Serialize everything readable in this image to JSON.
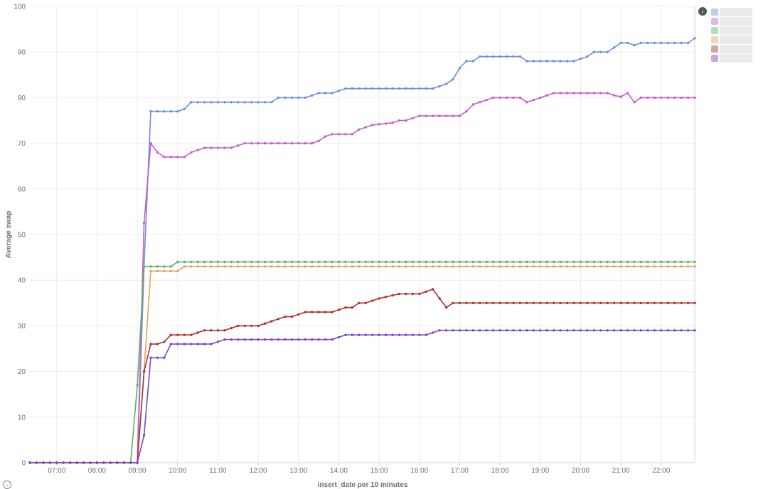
{
  "chart_data": {
    "type": "line",
    "xlabel": "insert_date per 10 minutes",
    "ylabel": "Average swap",
    "xlim": [
      "06:20",
      "22:50"
    ],
    "ylim": [
      0,
      100
    ],
    "yticks": [
      0,
      10,
      20,
      30,
      40,
      50,
      60,
      70,
      80,
      90,
      100
    ],
    "xticks": [
      "07:00",
      "08:00",
      "09:00",
      "10:00",
      "11:00",
      "12:00",
      "13:00",
      "14:00",
      "15:00",
      "16:00",
      "17:00",
      "18:00",
      "19:00",
      "20:00",
      "21:00",
      "22:00"
    ],
    "grid": true,
    "legend": "top-right (obscured)",
    "series": [
      {
        "color": "#6e8fd8",
        "points": [
          [
            "06:20",
            0
          ],
          [
            "09:00",
            0
          ],
          [
            "09:10",
            43
          ],
          [
            "09:20",
            77
          ],
          [
            "09:30",
            77
          ],
          [
            "09:40",
            77
          ],
          [
            "09:50",
            77
          ],
          [
            "10:00",
            77
          ],
          [
            "10:10",
            77.5
          ],
          [
            "10:20",
            79
          ],
          [
            "10:30",
            79
          ],
          [
            "12:20",
            79
          ],
          [
            "12:30",
            80
          ],
          [
            "13:10",
            80
          ],
          [
            "13:20",
            80.5
          ],
          [
            "13:30",
            81
          ],
          [
            "13:50",
            81
          ],
          [
            "14:00",
            81.5
          ],
          [
            "14:10",
            82
          ],
          [
            "16:20",
            82
          ],
          [
            "16:30",
            82.5
          ],
          [
            "16:40",
            83
          ],
          [
            "16:50",
            84
          ],
          [
            "17:00",
            86.5
          ],
          [
            "17:10",
            88
          ],
          [
            "17:20",
            88
          ],
          [
            "17:30",
            89
          ],
          [
            "18:30",
            89
          ],
          [
            "18:40",
            88
          ],
          [
            "19:50",
            88
          ],
          [
            "20:00",
            88.5
          ],
          [
            "20:10",
            89
          ],
          [
            "20:20",
            90
          ],
          [
            "20:40",
            90
          ],
          [
            "20:50",
            91
          ],
          [
            "21:00",
            92
          ],
          [
            "21:10",
            92
          ],
          [
            "21:20",
            91.5
          ],
          [
            "21:30",
            92
          ],
          [
            "22:40",
            92
          ],
          [
            "22:50",
            93
          ]
        ]
      },
      {
        "color": "#c45fc8",
        "points": [
          [
            "06:20",
            0
          ],
          [
            "09:00",
            0
          ],
          [
            "09:10",
            52.5
          ],
          [
            "09:20",
            70
          ],
          [
            "09:30",
            68
          ],
          [
            "09:40",
            67
          ],
          [
            "10:10",
            67
          ],
          [
            "10:20",
            68
          ],
          [
            "10:30",
            68.5
          ],
          [
            "10:40",
            69
          ],
          [
            "11:20",
            69
          ],
          [
            "11:30",
            69.5
          ],
          [
            "11:40",
            70
          ],
          [
            "13:20",
            70
          ],
          [
            "13:30",
            70.5
          ],
          [
            "13:40",
            71.5
          ],
          [
            "13:50",
            72
          ],
          [
            "14:20",
            72
          ],
          [
            "14:30",
            73
          ],
          [
            "14:40",
            73.5
          ],
          [
            "14:50",
            74
          ],
          [
            "15:20",
            74.5
          ],
          [
            "15:30",
            75
          ],
          [
            "15:40",
            75
          ],
          [
            "15:50",
            75.5
          ],
          [
            "16:00",
            76
          ],
          [
            "17:00",
            76
          ],
          [
            "17:10",
            77
          ],
          [
            "17:20",
            78.5
          ],
          [
            "17:30",
            79
          ],
          [
            "17:40",
            79.5
          ],
          [
            "17:50",
            80
          ],
          [
            "18:30",
            80
          ],
          [
            "18:40",
            79
          ],
          [
            "18:50",
            79.5
          ],
          [
            "19:00",
            80
          ],
          [
            "19:10",
            80.5
          ],
          [
            "19:20",
            81
          ],
          [
            "20:40",
            81
          ],
          [
            "20:50",
            80.5
          ],
          [
            "21:00",
            80.2
          ],
          [
            "21:10",
            81
          ],
          [
            "21:20",
            79
          ],
          [
            "21:30",
            80
          ],
          [
            "22:50",
            80
          ]
        ]
      },
      {
        "color": "#59b366",
        "points": [
          [
            "06:20",
            0
          ],
          [
            "08:50",
            0
          ],
          [
            "09:00",
            17
          ],
          [
            "09:10",
            43
          ],
          [
            "09:50",
            43
          ],
          [
            "10:00",
            44
          ],
          [
            "22:50",
            44
          ]
        ]
      },
      {
        "color": "#e0a35c",
        "points": [
          [
            "06:20",
            0
          ],
          [
            "09:00",
            0
          ],
          [
            "09:10",
            20
          ],
          [
            "09:20",
            42
          ],
          [
            "09:30",
            42
          ],
          [
            "10:00",
            42
          ],
          [
            "10:10",
            43
          ],
          [
            "22:50",
            43
          ]
        ]
      },
      {
        "color": "#a83232",
        "points": [
          [
            "06:20",
            0
          ],
          [
            "09:00",
            0
          ],
          [
            "09:10",
            20
          ],
          [
            "09:20",
            26
          ],
          [
            "09:30",
            26
          ],
          [
            "09:40",
            26.5
          ],
          [
            "09:50",
            28
          ],
          [
            "10:20",
            28
          ],
          [
            "10:30",
            28.5
          ],
          [
            "10:40",
            29
          ],
          [
            "11:10",
            29
          ],
          [
            "11:20",
            29.5
          ],
          [
            "11:30",
            30
          ],
          [
            "12:00",
            30
          ],
          [
            "12:10",
            30.5
          ],
          [
            "12:20",
            31
          ],
          [
            "12:30",
            31.5
          ],
          [
            "12:40",
            32
          ],
          [
            "12:50",
            32
          ],
          [
            "13:00",
            32.5
          ],
          [
            "13:10",
            33
          ],
          [
            "13:50",
            33
          ],
          [
            "14:00",
            33.5
          ],
          [
            "14:10",
            34
          ],
          [
            "14:20",
            34
          ],
          [
            "14:30",
            35
          ],
          [
            "14:40",
            35
          ],
          [
            "14:50",
            35.5
          ],
          [
            "15:00",
            36
          ],
          [
            "15:30",
            37
          ],
          [
            "16:00",
            37
          ],
          [
            "16:10",
            37.5
          ],
          [
            "16:20",
            38
          ],
          [
            "16:40",
            34
          ],
          [
            "16:50",
            35
          ],
          [
            "22:50",
            35
          ]
        ]
      },
      {
        "color": "#7a48c7",
        "points": [
          [
            "06:20",
            0
          ],
          [
            "09:00",
            0
          ],
          [
            "09:10",
            6
          ],
          [
            "09:20",
            23
          ],
          [
            "09:30",
            23
          ],
          [
            "09:40",
            23
          ],
          [
            "09:50",
            26
          ],
          [
            "10:50",
            26
          ],
          [
            "11:00",
            26.5
          ],
          [
            "11:10",
            27
          ],
          [
            "13:50",
            27
          ],
          [
            "14:00",
            27.5
          ],
          [
            "14:10",
            28
          ],
          [
            "16:00",
            28
          ],
          [
            "16:10",
            28
          ],
          [
            "16:20",
            28.5
          ],
          [
            "16:30",
            29
          ],
          [
            "22:50",
            29
          ]
        ]
      }
    ]
  }
}
